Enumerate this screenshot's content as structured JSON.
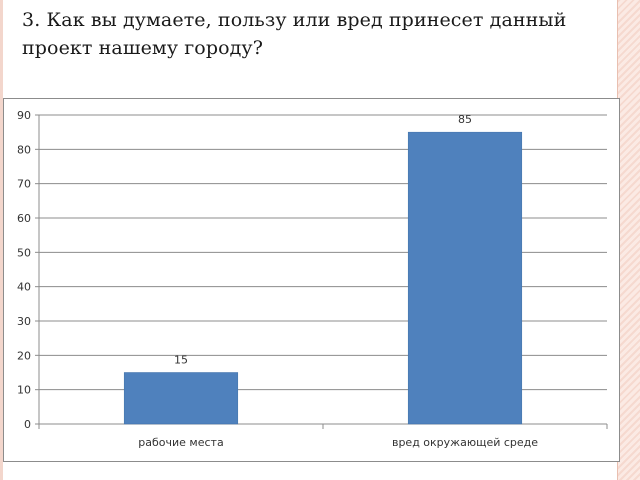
{
  "slide": {
    "question": "3. Как вы думаете, пользу или вред принесет данный проект нашему городу?"
  },
  "chart_data": {
    "type": "bar",
    "categories": [
      "рабочие места",
      "вред окружающей среде"
    ],
    "values": [
      15,
      85
    ],
    "data_labels": [
      "15",
      "85"
    ],
    "y_ticks": [
      "0",
      "10",
      "20",
      "30",
      "40",
      "50",
      "60",
      "70",
      "80",
      "90"
    ],
    "ylim": [
      0,
      90
    ],
    "grid": true,
    "legend": "none",
    "bar_color": "#4f81bd",
    "gridline_color": "#8c8c8c"
  }
}
